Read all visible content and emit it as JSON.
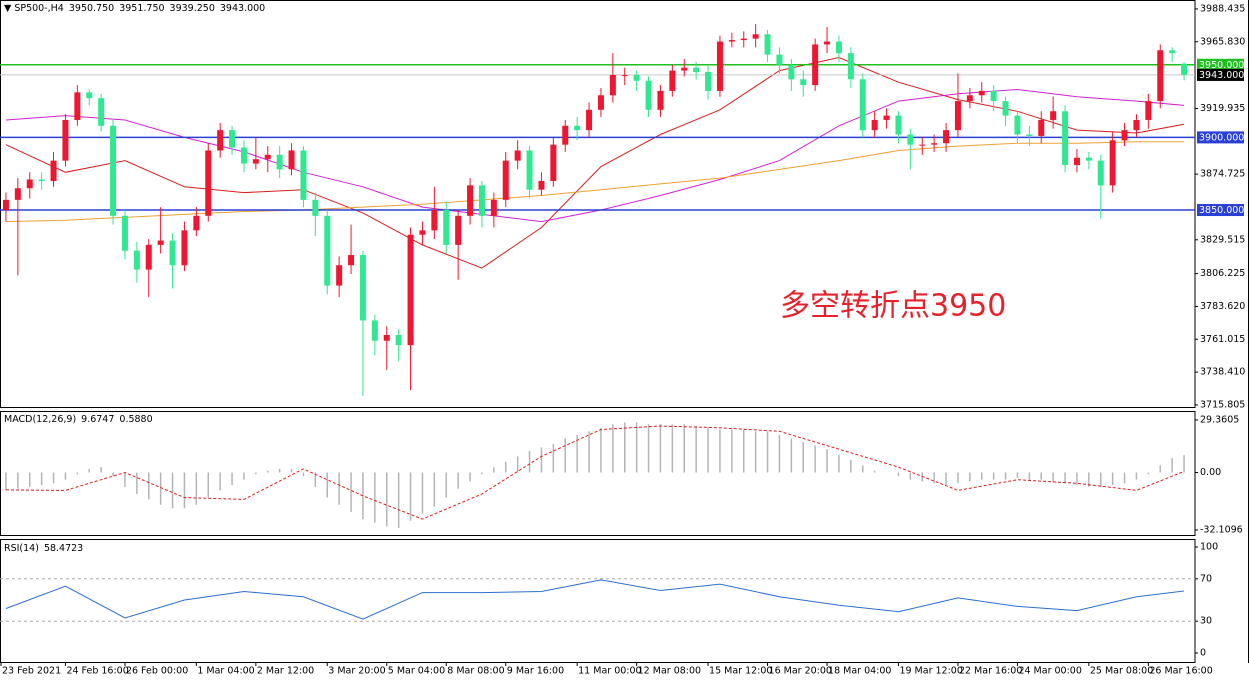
{
  "chart_data": [
    {
      "type": "candlestick",
      "title": "SP500-,H4",
      "header": [
        {
          "value": 3950.75,
          "label": "3950.750"
        },
        {
          "value": 3951.75,
          "label": "3951.750"
        },
        {
          "value": 3939.25,
          "label": "3939.250"
        },
        {
          "value": 3943,
          "label": "3943.000"
        }
      ],
      "categories": [
        "23 Feb 2021",
        null,
        null,
        null,
        null,
        "24 Feb 16:00",
        null,
        null,
        null,
        null,
        "26 Feb 00:00",
        null,
        null,
        null,
        null,
        null,
        "1 Mar 04:00",
        null,
        null,
        null,
        null,
        "2 Mar 12:00",
        null,
        null,
        null,
        null,
        null,
        "3 Mar 20:00",
        null,
        null,
        null,
        null,
        "5 Mar 04:00",
        null,
        null,
        null,
        null,
        "8 Mar 08:00",
        null,
        null,
        null,
        null,
        "9 Mar 16:00",
        null,
        null,
        null,
        null,
        null,
        "11 Mar 00:00",
        null,
        null,
        null,
        null,
        "12 Mar 08:00",
        null,
        null,
        null,
        null,
        null,
        "15 Mar 12:00",
        null,
        null,
        null,
        null,
        "16 Mar 20:00",
        null,
        null,
        null,
        null,
        "18 Mar 04:00",
        null,
        null,
        null,
        null,
        null,
        "19 Mar 12:00",
        null,
        null,
        null,
        null,
        "22 Mar 16:00",
        null,
        null,
        null,
        null,
        "24 Mar 00:00",
        null,
        null,
        null,
        null,
        null,
        "25 Mar 08:00",
        null,
        null,
        null,
        null,
        "26 Mar 16:00",
        null,
        null,
        null
      ],
      "open": [
        3850,
        3857,
        3865,
        3871,
        3870,
        3884,
        3912,
        3931,
        3927,
        3908,
        3846,
        3822,
        3809,
        3826,
        3829,
        3812,
        3836,
        3846,
        3891,
        3905,
        3893,
        3882,
        3885,
        3888,
        3878,
        3891,
        3857,
        3846,
        3798,
        3812,
        3819,
        3774,
        3760,
        3764,
        3757,
        3833,
        3836,
        3850,
        3826,
        3846,
        3867,
        3846,
        3857,
        3884,
        3891,
        3864,
        3870,
        3895,
        3908,
        3905,
        3919,
        3929,
        3943,
        3943,
        3939,
        3919,
        3932,
        3946,
        3948,
        3945,
        3932,
        3966,
        3967,
        3968,
        3971,
        3957,
        3950,
        3940,
        3936,
        3964,
        3966,
        3958,
        3940,
        3905,
        3912,
        3915,
        3902,
        3895,
        3895,
        3896,
        3905,
        3925,
        3929,
        3932,
        3925,
        3915,
        3902,
        3901,
        3912,
        3918,
        3881,
        3886,
        3884,
        3867,
        3898,
        3905,
        3912,
        3925,
        3960,
        3950.75
      ],
      "high": [
        3862,
        3872,
        3876,
        3876,
        3890,
        3916,
        3936,
        3933,
        3930,
        3912,
        3850,
        3828,
        3830,
        3852,
        3834,
        3842,
        3852,
        3896,
        3910,
        3908,
        3898,
        3900,
        3894,
        3894,
        3896,
        3894,
        3862,
        3850,
        3818,
        3840,
        3822,
        3778,
        3770,
        3768,
        3838,
        3842,
        3866,
        3856,
        3850,
        3872,
        3870,
        3862,
        3890,
        3898,
        3894,
        3876,
        3900,
        3912,
        3914,
        3924,
        3934,
        3958,
        3948,
        3946,
        3942,
        3936,
        3950,
        3954,
        3952,
        3950,
        3970,
        3972,
        3973,
        3978,
        3974,
        3962,
        3954,
        3946,
        3968,
        3976,
        3970,
        3962,
        3944,
        3918,
        3920,
        3918,
        3906,
        3900,
        3902,
        3910,
        3944,
        3934,
        3938,
        3936,
        3928,
        3918,
        3908,
        3918,
        3928,
        3922,
        3892,
        3890,
        3888,
        3904,
        3910,
        3916,
        3930,
        3964,
        3962,
        3951.75
      ],
      "low": [
        3842,
        3805,
        3858,
        3864,
        3866,
        3880,
        3908,
        3922,
        3904,
        3840,
        3816,
        3800,
        3790,
        3820,
        3796,
        3808,
        3832,
        3842,
        3886,
        3888,
        3876,
        3878,
        3876,
        3872,
        3874,
        3852,
        3832,
        3792,
        3790,
        3806,
        3722,
        3750,
        3740,
        3746,
        3726,
        3826,
        3830,
        3820,
        3802,
        3840,
        3838,
        3838,
        3852,
        3878,
        3858,
        3860,
        3866,
        3890,
        3898,
        3900,
        3914,
        3924,
        3936,
        3932,
        3914,
        3914,
        3928,
        3942,
        3940,
        3926,
        3928,
        3962,
        3962,
        3962,
        3952,
        3944,
        3932,
        3928,
        3932,
        3958,
        3952,
        3934,
        3900,
        3900,
        3906,
        3896,
        3878,
        3888,
        3890,
        3890,
        3900,
        3920,
        3924,
        3918,
        3908,
        3896,
        3894,
        3896,
        3906,
        3876,
        3876,
        3878,
        3844,
        3862,
        3894,
        3900,
        3906,
        3920,
        3952,
        3939.25
      ],
      "close": [
        3857,
        3865,
        3871,
        3870,
        3884,
        3912,
        3931,
        3927,
        3908,
        3846,
        3822,
        3809,
        3826,
        3829,
        3812,
        3836,
        3846,
        3891,
        3905,
        3893,
        3882,
        3885,
        3888,
        3878,
        3891,
        3857,
        3846,
        3798,
        3812,
        3819,
        3774,
        3760,
        3764,
        3757,
        3833,
        3836,
        3850,
        3826,
        3846,
        3867,
        3846,
        3857,
        3884,
        3891,
        3864,
        3870,
        3895,
        3908,
        3905,
        3919,
        3929,
        3943,
        3943,
        3939,
        3919,
        3932,
        3946,
        3948,
        3945,
        3932,
        3966,
        3967,
        3968,
        3971,
        3957,
        3950,
        3940,
        3936,
        3964,
        3966,
        3958,
        3940,
        3905,
        3912,
        3915,
        3902,
        3895,
        3895,
        3896,
        3905,
        3925,
        3929,
        3932,
        3925,
        3915,
        3902,
        3901,
        3912,
        3918,
        3881,
        3886,
        3884,
        3867,
        3898,
        3905,
        3912,
        3925,
        3960,
        3958,
        3943
      ],
      "up_color": "#f0162f",
      "down_color": "#2fe890",
      "ma_x": [
        0,
        5,
        10,
        15,
        20,
        25,
        30,
        35,
        40,
        45,
        50,
        55,
        60,
        65,
        70,
        75,
        80,
        85,
        90,
        95,
        99
      ],
      "ma": [
        {
          "color": "#d81b1b",
          "values": [
            3895,
            3876,
            3884,
            3866,
            3862,
            3864,
            3848,
            3826,
            3810,
            3838,
            3880,
            3902,
            3919,
            3946,
            3955,
            3938,
            3926,
            3918,
            3905,
            3903,
            3909
          ]
        },
        {
          "color": "#d21fd2",
          "values": [
            3912,
            3915,
            3912,
            3900,
            3890,
            3876,
            3866,
            3852,
            3847,
            3842,
            3850,
            3860,
            3871,
            3884,
            3908,
            3925,
            3930,
            3933,
            3928,
            3925,
            3922
          ]
        },
        {
          "color": "#f0a030",
          "values": [
            3842,
            3843,
            3845,
            3847,
            3849,
            3850,
            3852,
            3854,
            3857,
            3860,
            3864,
            3868,
            3872,
            3878,
            3884,
            3891,
            3894,
            3896,
            3896,
            3897,
            3897
          ]
        }
      ],
      "ylim": [
        3714.4,
        3993.9
      ],
      "yticks": [
        3988.435,
        {
          "value": 3965.83,
          "label": "3965.830"
        },
        3919.935,
        3874.725,
        3829.515,
        3806.225,
        {
          "value": 3783.62,
          "label": "3783.620"
        },
        3761.015,
        {
          "value": 3738.41,
          "label": "3738.410"
        },
        3715.805
      ],
      "levels": [
        {
          "value": 3950,
          "label": "3950.000",
          "color": "#1fbf1f"
        },
        {
          "value": 3900,
          "label": "3900.000",
          "color": "#2a3fd6"
        },
        {
          "value": 3850,
          "label": "3850.000",
          "color": "#2a3fd6"
        }
      ],
      "last_price": {
        "value": 3943,
        "label": "3943.000"
      },
      "annotation": "多空转折点3950"
    },
    {
      "type": "macd",
      "title": "MACD(12,26,9)",
      "header": [
        9.6747,
        {
          "value": 0.588,
          "label": "0.5880"
        }
      ],
      "values": [
        -10,
        -9,
        -8,
        -7,
        -6,
        -4,
        -1,
        2,
        3,
        -2,
        -8,
        -12,
        -15,
        -18,
        -20,
        -20,
        -18,
        -14,
        -10,
        -7,
        -4,
        -1,
        1,
        2,
        2,
        -2,
        -8,
        -14,
        -18,
        -22,
        -26,
        -28,
        -30,
        -31,
        -27,
        -23,
        -19,
        -14,
        -9,
        -5,
        -1,
        3,
        6,
        9,
        12,
        14,
        16,
        19,
        21,
        23,
        25,
        27,
        28,
        28,
        27,
        27,
        27,
        27,
        26,
        25,
        24,
        24,
        24,
        23,
        23,
        21,
        19,
        17,
        15,
        13,
        10,
        7,
        4,
        1,
        0,
        -2,
        -4,
        -5,
        -6,
        -7,
        -6,
        -5,
        -4,
        -4,
        -4,
        -3,
        -4,
        -4,
        -5,
        -6,
        -7,
        -8,
        -8,
        -7,
        -6,
        -4,
        -1,
        4,
        8,
        9.6747
      ],
      "color": "#b4b4b4",
      "signal": {
        "x": [
          0,
          5,
          10,
          15,
          20,
          25,
          30,
          35,
          40,
          45,
          50,
          55,
          60,
          65,
          70,
          75,
          80,
          85,
          90,
          95,
          99
        ],
        "values": [
          -9.7,
          -10,
          0,
          -14,
          -15,
          2,
          -13,
          -26,
          -12,
          9,
          24,
          26,
          25,
          23,
          13,
          3,
          -10,
          -4,
          -6,
          -10,
          0.588
        ],
        "color": "#e01b1b"
      },
      "ylim": [
        -34.9,
        33.8
      ],
      "yticks": [
        -32.1096,
        {
          "value": 0,
          "label": "0.00"
        },
        29.3605
      ]
    },
    {
      "type": "line",
      "title": "RSI(14)",
      "header": [
        58.4723
      ],
      "x": [
        0,
        5,
        10,
        15,
        20,
        25,
        30,
        35,
        40,
        45,
        50,
        55,
        60,
        65,
        70,
        75,
        80,
        85,
        90,
        95,
        99
      ],
      "values": [
        42,
        63,
        33,
        50,
        58,
        53,
        32,
        57,
        57,
        58,
        69,
        59,
        65,
        53,
        45,
        39,
        52,
        44,
        40,
        53,
        58.4723
      ],
      "color": "#2a6fd0",
      "ylim": [
        -8.5,
        106.6
      ],
      "yticks": [
        0,
        30,
        70,
        100
      ],
      "levels": [
        70,
        30
      ]
    }
  ]
}
